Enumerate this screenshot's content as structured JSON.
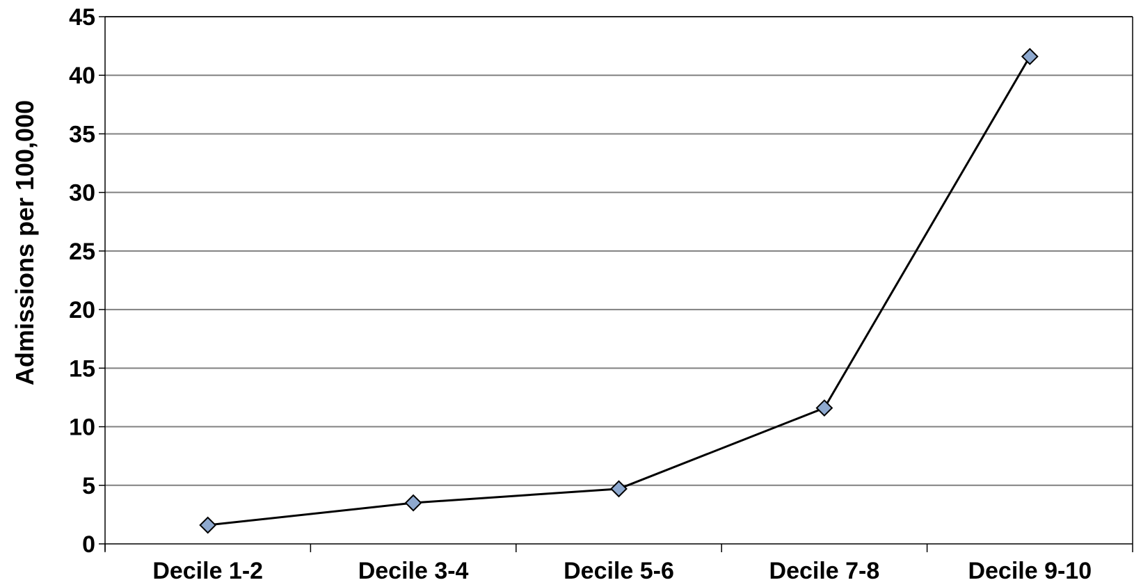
{
  "chart_data": {
    "type": "line",
    "title": "",
    "xlabel": "",
    "ylabel": "Admissions per 100,000",
    "categories": [
      "Decile 1-2",
      "Decile 3-4",
      "Decile 5-6",
      "Decile 7-8",
      "Decile 9-10"
    ],
    "series": [
      {
        "values": [
          1.6,
          3.5,
          4.7,
          11.6,
          41.6
        ],
        "line_color": "#000000",
        "marker": "diamond",
        "marker_fill": "#8EA9CF",
        "marker_stroke": "#000000"
      }
    ],
    "ylim": [
      0,
      45
    ],
    "y_ticks": [
      0,
      5,
      10,
      15,
      20,
      25,
      30,
      35,
      40,
      45
    ],
    "grid": true,
    "grid_color": "#808080",
    "legend": "none"
  }
}
